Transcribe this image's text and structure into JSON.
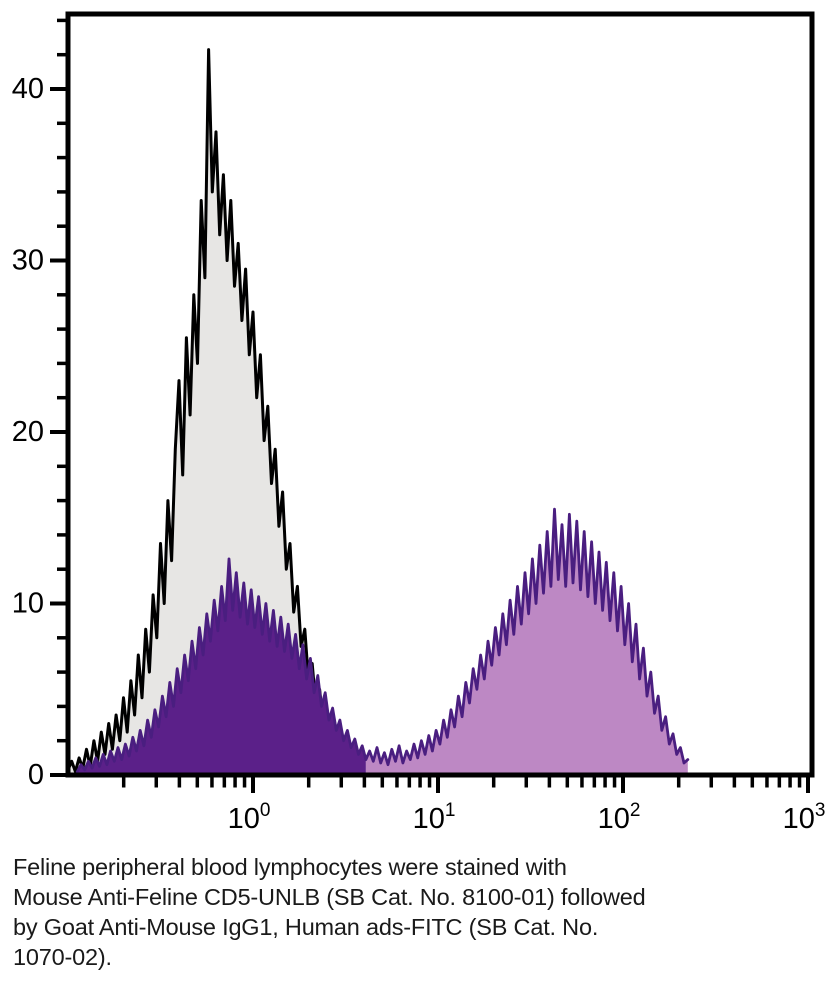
{
  "chart_data": {
    "type": "area",
    "subtype": "flow-cytometry-histogram-overlay",
    "title": "",
    "xlabel": "",
    "ylabel": "",
    "grid": false,
    "legend": "none",
    "x_axis": {
      "scale": "log10",
      "min_log": -1.0,
      "max_log": 3.02,
      "major_tick_logs": [
        0,
        1,
        2,
        3
      ],
      "major_tick_labels": [
        {
          "base": "10",
          "exp": "0"
        },
        {
          "base": "10",
          "exp": "1"
        },
        {
          "base": "10",
          "exp": "2"
        },
        {
          "base": "10",
          "exp": "3"
        }
      ],
      "minor_tick_decades": [
        -1,
        0,
        1,
        2
      ]
    },
    "y_axis": {
      "min": 0,
      "max": 44.4,
      "major_ticks": [
        0,
        10,
        20,
        30,
        40
      ],
      "major_tick_labels": [
        "0",
        "10",
        "20",
        "30",
        "40"
      ],
      "minor_tick_step": 2,
      "minor_tick_max": 44
    },
    "series": [
      {
        "name": "control-histogram-black-gray",
        "line_color": "#000000",
        "fill_color": "#E7E6E4",
        "line_width": 3,
        "x0_log": -1.0,
        "dx_log": 0.02,
        "y": [
          0.3,
          0.8,
          0.2,
          1.0,
          0.4,
          1.5,
          0.5,
          2.0,
          0.8,
          2.5,
          1.2,
          3.0,
          1.5,
          3.5,
          2.0,
          4.5,
          2.5,
          5.5,
          3.5,
          7.0,
          4.5,
          8.5,
          6.0,
          10.5,
          8.0,
          13.5,
          10.0,
          16.0,
          12.5,
          19.0,
          23.0,
          17.5,
          25.5,
          21.0,
          28.0,
          24.0,
          33.5,
          29.0,
          42.3,
          34.0,
          37.5,
          31.5,
          35.0,
          30.0,
          33.5,
          28.5,
          31.0,
          26.5,
          29.5,
          24.5,
          27.0,
          22.0,
          24.5,
          19.5,
          21.5,
          17.0,
          19.0,
          14.5,
          16.5,
          12.0,
          13.5,
          9.5,
          11.0,
          7.5,
          8.5,
          5.5,
          6.5,
          4.0,
          5.0,
          3.0,
          3.8,
          2.2,
          2.8,
          1.5,
          2.0,
          1.0,
          1.5,
          0.6,
          1.0,
          0.4,
          0.2
        ]
      },
      {
        "name": "cd5-fitc-histogram-purple",
        "line_color": "#4A1E80",
        "fill_color_negative_peak": "#5B2089",
        "fill_color_positive_peak": "#BD88C4",
        "line_width": 2.8,
        "split_index": 78,
        "x0_log": -0.95,
        "dx_log": 0.02,
        "y": [
          0.2,
          0.6,
          0.3,
          0.8,
          0.4,
          1.0,
          0.5,
          1.2,
          0.6,
          1.4,
          0.8,
          1.6,
          0.9,
          1.8,
          1.1,
          2.2,
          1.4,
          2.6,
          1.7,
          3.2,
          2.2,
          3.8,
          2.8,
          4.6,
          3.4,
          5.4,
          4.0,
          6.2,
          4.8,
          7.0,
          5.5,
          7.8,
          6.2,
          8.6,
          7.0,
          9.4,
          7.8,
          10.2,
          8.4,
          11.0,
          9.0,
          12.6,
          9.6,
          11.8,
          9.2,
          11.2,
          8.8,
          10.8,
          8.6,
          10.4,
          8.2,
          10.0,
          7.8,
          9.6,
          7.5,
          9.2,
          7.2,
          8.8,
          6.8,
          8.2,
          6.2,
          7.6,
          5.6,
          6.8,
          4.8,
          5.8,
          4.0,
          4.8,
          3.2,
          3.9,
          2.6,
          3.2,
          2.0,
          2.6,
          1.6,
          2.1,
          1.2,
          1.7,
          0.9,
          1.4,
          0.8,
          1.6,
          0.7,
          1.3,
          0.6,
          1.5,
          0.8,
          1.7,
          0.7,
          1.4,
          0.9,
          1.8,
          1.0,
          2.0,
          1.2,
          2.3,
          1.4,
          2.6,
          1.8,
          3.2,
          2.2,
          3.8,
          2.8,
          4.6,
          3.4,
          5.4,
          4.2,
          6.2,
          5.0,
          7.0,
          5.6,
          7.8,
          6.4,
          8.6,
          7.0,
          9.4,
          7.6,
          10.2,
          8.2,
          11.0,
          8.8,
          11.8,
          9.4,
          12.6,
          10.0,
          13.4,
          10.6,
          14.2,
          11.0,
          15.5,
          11.4,
          14.6,
          11.0,
          15.2,
          11.2,
          14.8,
          10.8,
          14.2,
          10.4,
          13.6,
          10.0,
          13.0,
          9.6,
          12.4,
          9.0,
          11.8,
          8.4,
          11.0,
          7.6,
          10.0,
          6.6,
          8.8,
          5.6,
          7.4,
          4.6,
          6.0,
          3.6,
          4.6,
          2.6,
          3.4,
          1.8,
          2.4,
          1.2,
          1.6,
          0.7,
          0.9
        ]
      }
    ],
    "plot_box_color": "#000000"
  },
  "caption": {
    "text": "Feline peripheral blood lymphocytes were stained with Mouse Anti-Feline CD5-UNLB (SB Cat. No. 8100-01) followed by Goat Anti-Mouse IgG1, Human ads-FITC (SB Cat. No. 1070-02).",
    "lines": [
      "Feline peripheral blood lymphocytes were stained with",
      "Mouse Anti-Feline CD5-UNLB (SB Cat. No. 8100-01) followed",
      "by Goat Anti-Mouse IgG1, Human ads-FITC (SB Cat. No.",
      "1070-02)."
    ]
  }
}
